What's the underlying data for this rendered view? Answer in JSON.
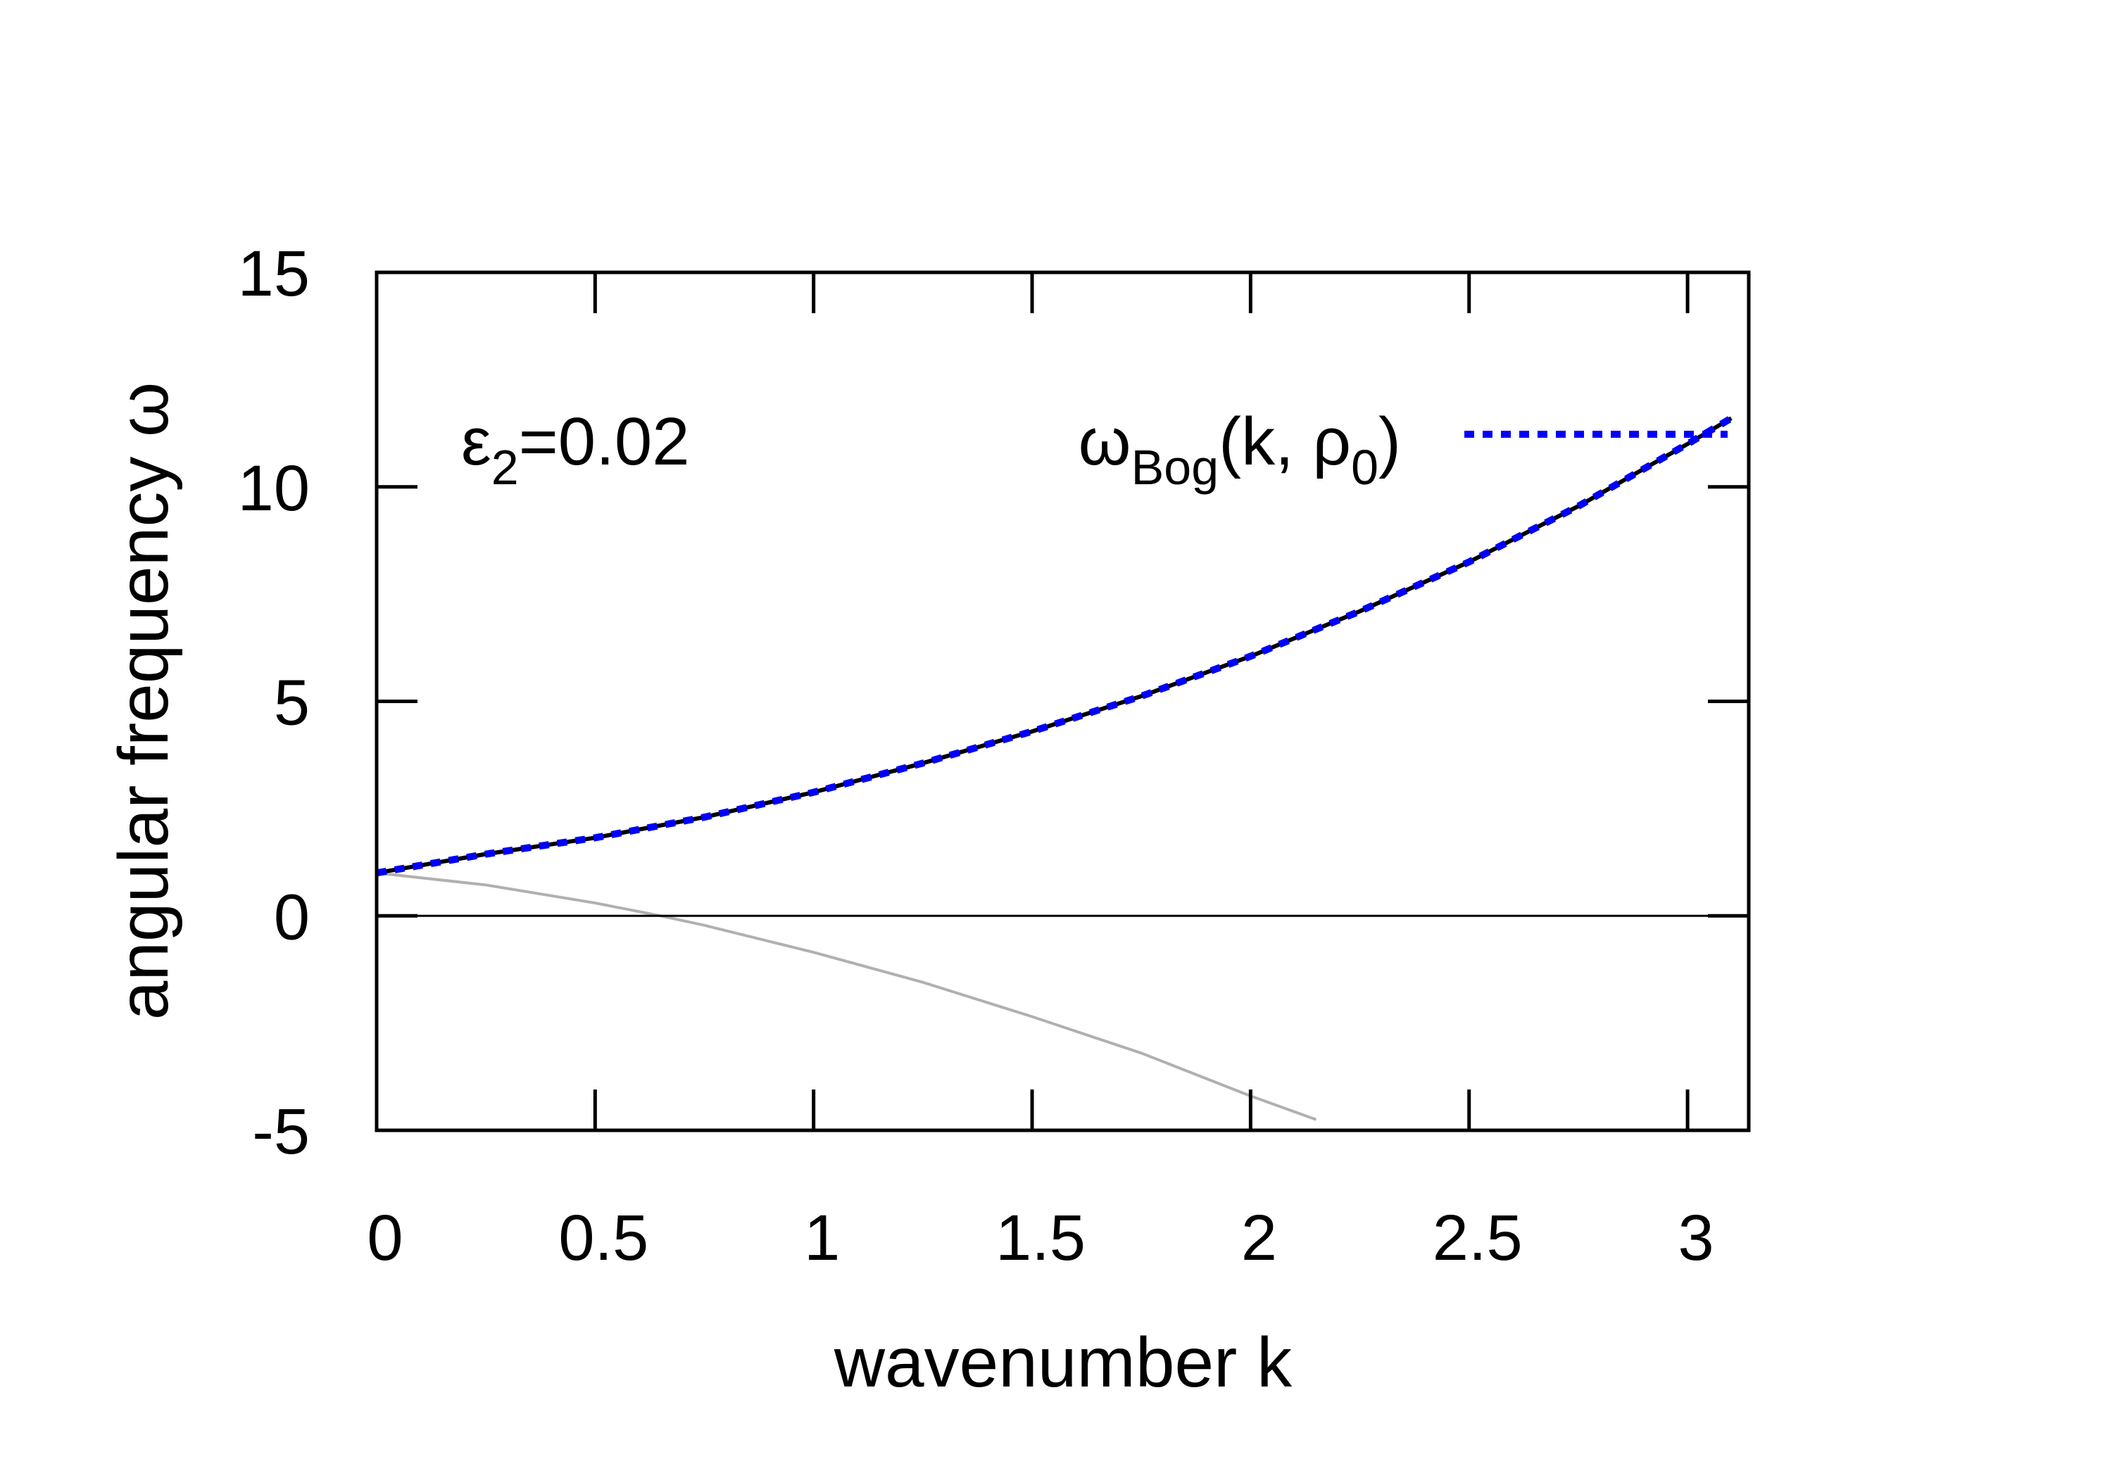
{
  "chart_data": {
    "type": "line",
    "xlabel": "wavenumber k",
    "ylabel": "angular frequency ω",
    "xlim": [
      0,
      3.14
    ],
    "ylim": [
      -5,
      15
    ],
    "xticks": [
      0,
      0.5,
      1,
      1.5,
      2,
      2.5,
      3
    ],
    "xtick_labels": [
      "0",
      "0.5",
      "1",
      "1.5",
      "2",
      "2.5",
      "3"
    ],
    "yticks": [
      -5,
      0,
      5,
      10,
      15
    ],
    "ytick_labels": [
      "-5",
      "0",
      "5",
      "10",
      "15"
    ],
    "grid": false,
    "legend_position": "top-right",
    "annotation": {
      "base": "ε",
      "sub": "2",
      "rest": "=0.02"
    },
    "legend": {
      "omega": "ω",
      "sub": "Bog",
      "mid": "(k, ρ",
      "sub2": "0",
      "end": ")"
    },
    "series": [
      {
        "name": "ωBog(k, ρ0)",
        "style": "dotted",
        "color": "#0000ff",
        "x": [
          0,
          0.25,
          0.5,
          0.75,
          1.0,
          1.25,
          1.5,
          1.75,
          2.0,
          2.25,
          2.5,
          2.75,
          3.0,
          3.1
        ],
        "y": [
          1.0,
          1.44,
          1.82,
          2.3,
          2.88,
          3.56,
          4.3,
          5.12,
          6.05,
          7.1,
          8.25,
          9.55,
          11.0,
          11.6
        ]
      },
      {
        "style": "solid",
        "color": "#000000",
        "x": [
          0,
          0.25,
          0.5,
          0.75,
          1.0,
          1.25,
          1.5,
          1.75,
          2.0,
          2.25,
          2.5,
          2.75,
          3.0,
          3.1
        ],
        "y": [
          1.0,
          1.44,
          1.82,
          2.3,
          2.88,
          3.56,
          4.3,
          5.12,
          6.05,
          7.1,
          8.25,
          9.55,
          11.0,
          11.6
        ]
      },
      {
        "style": "solid",
        "color": "#b0b0b0",
        "x": [
          0,
          0.25,
          0.5,
          0.65,
          0.75,
          1.0,
          1.25,
          1.5,
          1.75,
          2.0,
          2.15
        ],
        "y": [
          1.0,
          0.72,
          0.3,
          0.0,
          -0.22,
          -0.85,
          -1.55,
          -2.35,
          -3.2,
          -4.2,
          -4.75
        ]
      }
    ]
  }
}
